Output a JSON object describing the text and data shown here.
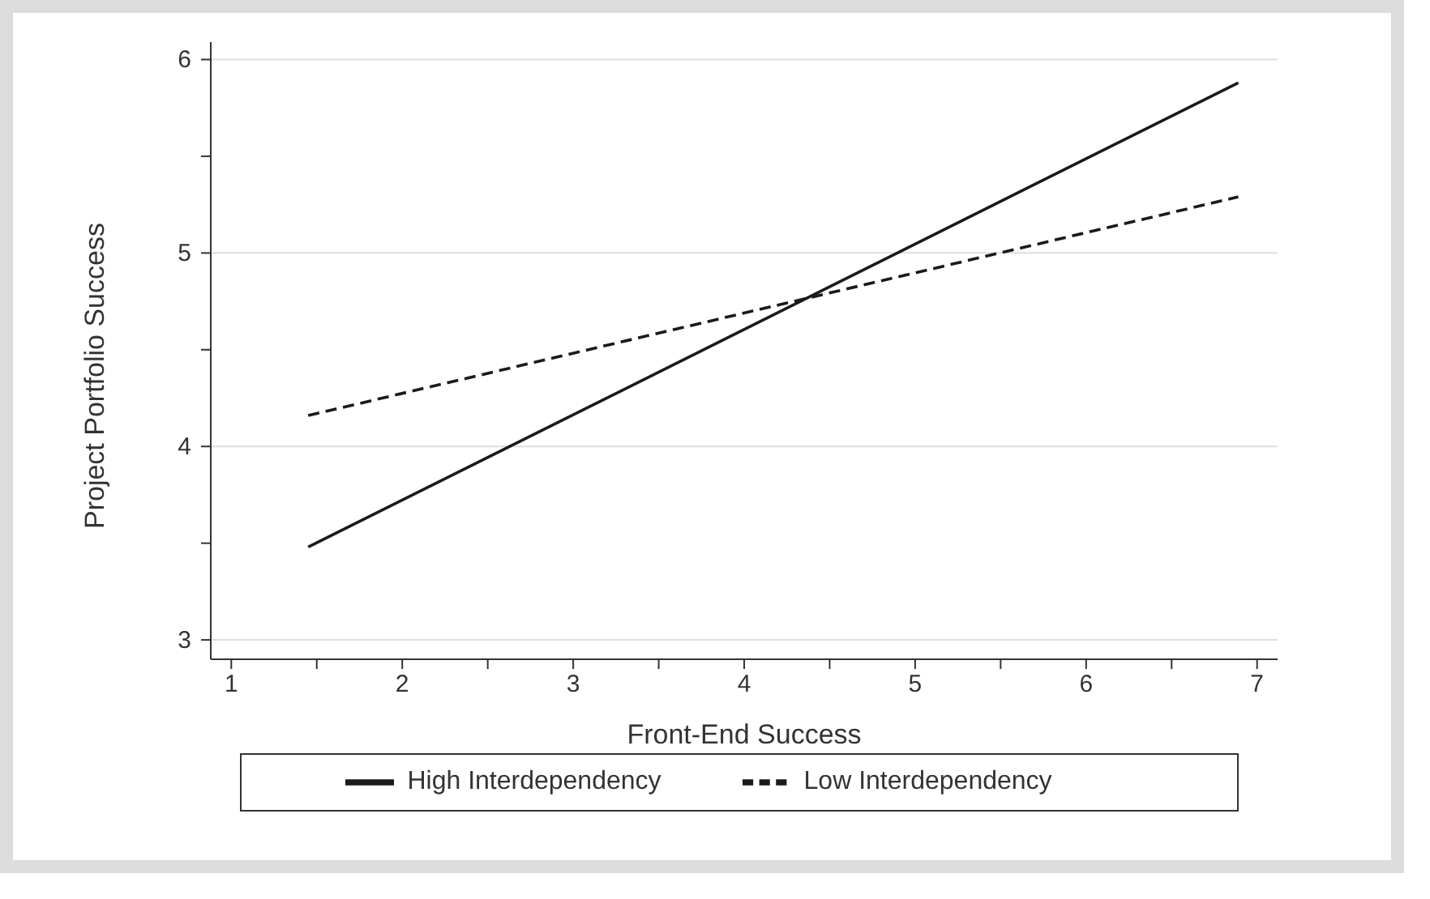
{
  "chart_data": {
    "type": "line",
    "xlabel": "Front-End Success",
    "ylabel": "Project Portfolio Success",
    "x": [
      1.45,
      6.89
    ],
    "series": [
      {
        "name": "High Interdependency",
        "color": "#1a1a1a",
        "line_style": "solid",
        "values": [
          3.48,
          5.88
        ]
      },
      {
        "name": "Low Interdependency",
        "color": "#1a1a1a",
        "line_style": "dashed",
        "values": [
          4.16,
          5.29
        ]
      }
    ],
    "xlim": [
      0.88,
      7.12
    ],
    "ylim": [
      2.9,
      6.09
    ],
    "xticks": [
      1,
      {
        "value": 1.5,
        "label": null
      },
      2,
      {
        "value": 2.5,
        "label": null
      },
      3,
      {
        "value": 3.5,
        "label": null
      },
      4,
      {
        "value": 4.5,
        "label": null
      },
      5,
      {
        "value": 5.5,
        "label": null
      },
      6,
      {
        "value": 6.5,
        "label": null
      },
      7
    ],
    "yticks": [
      3,
      {
        "value": 3.5,
        "label": null
      },
      4,
      {
        "value": 4.5,
        "label": null
      },
      5,
      {
        "value": 5.5,
        "label": null
      },
      6
    ],
    "grid": "y",
    "legend": "bottom",
    "marker": "none"
  }
}
